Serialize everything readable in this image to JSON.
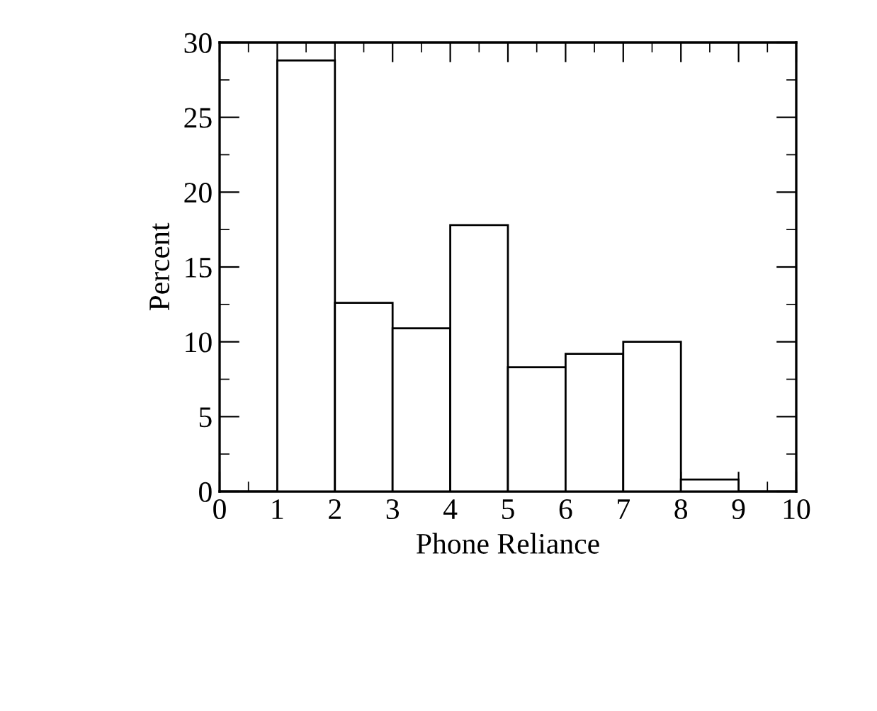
{
  "chart_data": {
    "type": "histogram",
    "xlabel": "Phone Reliance",
    "ylabel": "Percent",
    "bins": [
      1,
      2,
      3,
      4,
      5,
      6,
      7,
      8,
      9
    ],
    "values": [
      28.8,
      12.6,
      10.9,
      17.8,
      8.3,
      9.2,
      10.0,
      0.8
    ],
    "color": "#ffffff",
    "xlim": [
      0,
      10
    ],
    "xticks": [
      0,
      1,
      2,
      3,
      4,
      5,
      6,
      7,
      8,
      9,
      10
    ],
    "ylim": [
      0,
      30
    ],
    "yticks": [
      0,
      5,
      10,
      15,
      20,
      25,
      30
    ],
    "grid": false
  }
}
